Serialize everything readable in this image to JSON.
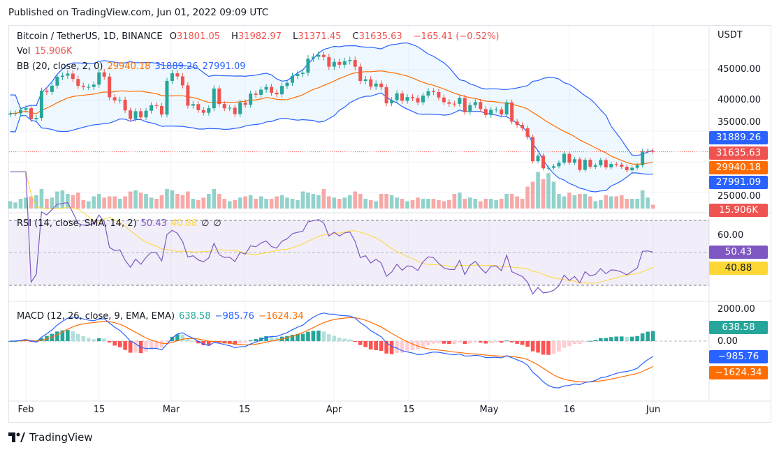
{
  "published": "Published on TradingView.com, Jun 01, 2022 09:09 UTC",
  "legend": {
    "symbol": "Bitcoin / TetherUS, 1D, BINANCE",
    "o_label": "O",
    "o": "31801.05",
    "h_label": "H",
    "h": "31982.97",
    "l_label": "L",
    "l": "31371.45",
    "c_label": "C",
    "c": "31635.63",
    "change": "−165.41 (−0.52%)",
    "vol_label": "Vol",
    "vol": "15.906K",
    "bb_label": "BB (20, close, 2, 0)",
    "bb_basis": "29940.18",
    "bb_upper": "31889.26",
    "bb_lower": "27991.09",
    "rsi_label": "RSI (14, close, SMA, 14, 2)",
    "rsi": "50.43",
    "rsi_sma": "40.88",
    "rsi_x1": "∅",
    "rsi_x2": "∅",
    "macd_label": "MACD (12, 26, close, 9, EMA, EMA)",
    "macd_hist": "638.58",
    "macd": "−985.76",
    "macd_signal": "−1624.34"
  },
  "price_axis": {
    "unit": "USDT",
    "ticks": [
      "45000.00",
      "40000.00",
      "35000.00",
      "25000.00"
    ],
    "tags": [
      "31889.26",
      "31635.63",
      "29940.18",
      "27991.09",
      "15.906K"
    ]
  },
  "rsi_axis": {
    "ticks": [
      "60.00"
    ],
    "tags": [
      "50.43",
      "40.88"
    ]
  },
  "macd_axis": {
    "ticks": [
      "2000.00",
      "0.00"
    ],
    "tags": [
      "638.58",
      "−985.76",
      "−1624.34"
    ]
  },
  "time_axis": [
    "Feb",
    "15",
    "Mar",
    "15",
    "Apr",
    "15",
    "May",
    "16",
    "Jun"
  ],
  "logo": "TradingView",
  "colors": {
    "up": "#26a69a",
    "down": "#ef5350",
    "bb": "#2962ff",
    "basis": "#ff6d00",
    "rsi": "#7e57c2",
    "rsi_sma": "#fdd835"
  },
  "chart_data": {
    "type": "candlestick",
    "title": "Bitcoin / TetherUS, 1D, BINANCE",
    "x_start": "2022-01-29",
    "x_end": "2022-06-01",
    "ylim": [
      22500,
      52000
    ],
    "close": [
      37900,
      37900,
      38480,
      38740,
      36950,
      37150,
      41570,
      41380,
      42410,
      43840,
      44040,
      44370,
      43500,
      42390,
      42200,
      42200,
      42580,
      44570,
      43890,
      40520,
      40000,
      40120,
      38380,
      37000,
      38250,
      37250,
      38330,
      39220,
      39100,
      37700,
      43180,
      44420,
      43920,
      42450,
      39150,
      39400,
      38420,
      37990,
      38730,
      41940,
      39420,
      38730,
      38810,
      37780,
      39670,
      39280,
      41110,
      40920,
      41760,
      42200,
      41260,
      41000,
      42360,
      42880,
      43990,
      44310,
      44510,
      46820,
      47130,
      47430,
      47060,
      45510,
      46280,
      45810,
      46400,
      46580,
      45500,
      43170,
      43440,
      42250,
      42750,
      42150,
      39530,
      40070,
      41150,
      39940,
      40550,
      40380,
      39680,
      40800,
      41500,
      41360,
      40480,
      39710,
      39470,
      39450,
      40430,
      38110,
      39240,
      39740,
      38600,
      37630,
      38470,
      38520,
      37710,
      39690,
      36550,
      36010,
      35470,
      34040,
      30100,
      31010,
      28940,
      29030,
      29280,
      29860,
      31300,
      29860,
      30420,
      28690,
      30320,
      29200,
      29430,
      30290,
      29100,
      29650,
      29540,
      29200,
      28630,
      29030,
      29450,
      31720,
      31800,
      31635.63
    ],
    "volume_k": [
      30,
      25,
      40,
      45,
      50,
      55,
      80,
      40,
      45,
      70,
      75,
      60,
      55,
      65,
      35,
      30,
      50,
      60,
      45,
      50,
      50,
      40,
      50,
      70,
      75,
      65,
      60,
      45,
      40,
      55,
      80,
      75,
      60,
      55,
      70,
      40,
      35,
      45,
      60,
      80,
      60,
      40,
      30,
      35,
      45,
      50,
      55,
      40,
      50,
      40,
      40,
      50,
      55,
      45,
      40,
      35,
      70,
      65,
      60,
      55,
      80,
      50,
      45,
      40,
      45,
      55,
      70,
      60,
      40,
      35,
      30,
      60,
      60,
      55,
      45,
      40,
      30,
      35,
      45,
      40,
      40,
      40,
      35,
      30,
      35,
      60,
      65,
      40,
      45,
      40,
      30,
      40,
      40,
      35,
      40,
      60,
      60,
      50,
      40,
      90,
      110,
      150,
      120,
      145,
      110,
      60,
      50,
      65,
      55,
      60,
      60,
      50,
      30,
      35,
      55,
      50,
      50,
      55,
      40,
      40,
      40,
      75,
      45,
      15.906
    ],
    "indicators": [
      "BB (20, close, 2, 0)",
      "RSI (14, close, SMA, 14, 2)",
      "MACD (12, 26, close, 9, EMA, EMA)"
    ],
    "grid": true
  }
}
